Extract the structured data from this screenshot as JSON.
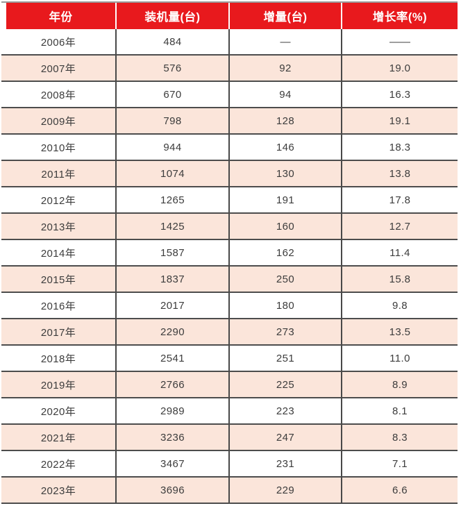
{
  "table": {
    "columns": [
      "年份",
      "装机量(台)",
      "增量(台)",
      "增长率(%)"
    ],
    "rows": [
      {
        "year": "2006年",
        "installed": "484",
        "increment": "—",
        "growth": "——"
      },
      {
        "year": "2007年",
        "installed": "576",
        "increment": "92",
        "growth": "19.0"
      },
      {
        "year": "2008年",
        "installed": "670",
        "increment": "94",
        "growth": "16.3"
      },
      {
        "year": "2009年",
        "installed": "798",
        "increment": "128",
        "growth": "19.1"
      },
      {
        "year": "2010年",
        "installed": "944",
        "increment": "146",
        "growth": "18.3"
      },
      {
        "year": "2011年",
        "installed": "1074",
        "increment": "130",
        "growth": "13.8"
      },
      {
        "year": "2012年",
        "installed": "1265",
        "increment": "191",
        "growth": "17.8"
      },
      {
        "year": "2013年",
        "installed": "1425",
        "increment": "160",
        "growth": "12.7"
      },
      {
        "year": "2014年",
        "installed": "1587",
        "increment": "162",
        "growth": "11.4"
      },
      {
        "year": "2015年",
        "installed": "1837",
        "increment": "250",
        "growth": "15.8"
      },
      {
        "year": "2016年",
        "installed": "2017",
        "increment": "180",
        "growth": "9.8"
      },
      {
        "year": "2017年",
        "installed": "2290",
        "increment": "273",
        "growth": "13.5"
      },
      {
        "year": "2018年",
        "installed": "2541",
        "increment": "251",
        "growth": "11.0"
      },
      {
        "year": "2019年",
        "installed": "2766",
        "increment": "225",
        "growth": "8.9"
      },
      {
        "year": "2020年",
        "installed": "2989",
        "increment": "223",
        "growth": "8.1"
      },
      {
        "year": "2021年",
        "installed": "3236",
        "increment": "247",
        "growth": "8.3"
      },
      {
        "year": "2022年",
        "installed": "3467",
        "increment": "231",
        "growth": "7.1"
      },
      {
        "year": "2023年",
        "installed": "3696",
        "increment": "229",
        "growth": "6.6"
      }
    ]
  },
  "chart_data": {
    "type": "table",
    "columns": [
      "年份",
      "装机量(台)",
      "增量(台)",
      "增长率(%)"
    ],
    "rows": [
      [
        "2006年",
        484,
        null,
        null
      ],
      [
        "2007年",
        576,
        92,
        19.0
      ],
      [
        "2008年",
        670,
        94,
        16.3
      ],
      [
        "2009年",
        798,
        128,
        19.1
      ],
      [
        "2010年",
        944,
        146,
        18.3
      ],
      [
        "2011年",
        1074,
        130,
        13.8
      ],
      [
        "2012年",
        1265,
        191,
        17.8
      ],
      [
        "2013年",
        1425,
        160,
        12.7
      ],
      [
        "2014年",
        1587,
        162,
        11.4
      ],
      [
        "2015年",
        1837,
        250,
        15.8
      ],
      [
        "2016年",
        2017,
        180,
        9.8
      ],
      [
        "2017年",
        2290,
        273,
        13.5
      ],
      [
        "2018年",
        2541,
        251,
        11.0
      ],
      [
        "2019年",
        2766,
        225,
        8.9
      ],
      [
        "2020年",
        2989,
        223,
        8.1
      ],
      [
        "2021年",
        3236,
        247,
        8.3
      ],
      [
        "2022年",
        3467,
        231,
        7.1
      ],
      [
        "2023年",
        3696,
        229,
        6.6
      ]
    ],
    "missing_value_marker": "—",
    "layout": {
      "header_position": "top",
      "zebra_striping": true,
      "start_row_color": "white"
    }
  },
  "colors": {
    "header_bg": "#e8191d",
    "header_text": "#ffffff",
    "row_bg": "#ffffff",
    "row_alt_bg": "#fbe5da",
    "row_border": "#4c4c4c",
    "cell_text": "#3c3c3c"
  }
}
